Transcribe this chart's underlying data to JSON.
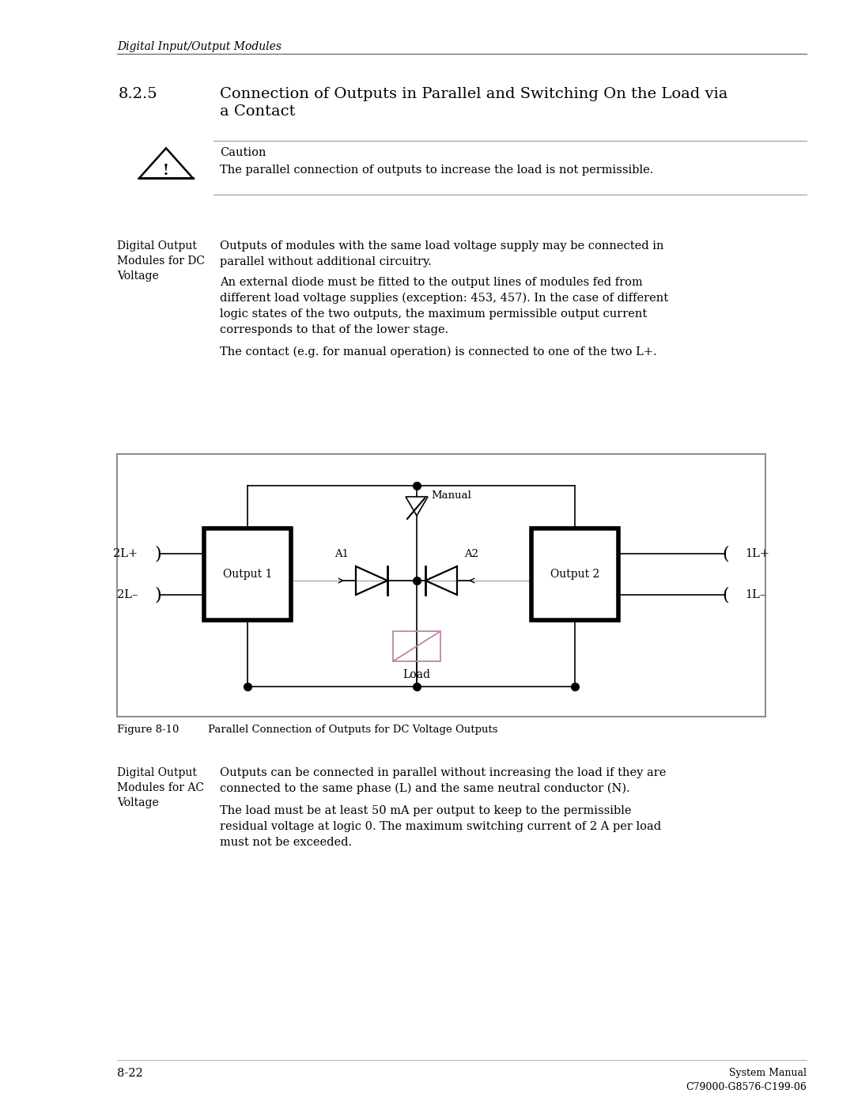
{
  "page_title": "Digital Input/Output Modules",
  "section_number": "8.2.5",
  "section_title_line1": "Connection of Outputs in Parallel and Switching On the Load via",
  "section_title_line2": "a Contact",
  "caution_label": "Caution",
  "caution_text": "The parallel connection of outputs to increase the load is not permissible.",
  "sidebar1": [
    "Digital Output",
    "Modules for DC",
    "Voltage"
  ],
  "para1_lines": [
    "Outputs of modules with the same load voltage supply may be connected in",
    "parallel without additional circuitry."
  ],
  "para2_lines": [
    "An external diode must be fitted to the output lines of modules fed from",
    "different load voltage supplies (exception: 453, 457). In the case of different",
    "logic states of the two outputs, the maximum permissible output current",
    "corresponds to that of the lower stage."
  ],
  "para3": "The contact (e.g. for manual operation) is connected to one of the two L+.",
  "figure_label": "Figure 8-10",
  "figure_caption": "Parallel Connection of Outputs for DC Voltage Outputs",
  "sidebar2": [
    "Digital Output",
    "Modules for AC",
    "Voltage"
  ],
  "para4_lines": [
    "Outputs can be connected in parallel without increasing the load if they are",
    "connected to the same phase (L) and the same neutral conductor (N)."
  ],
  "para5_lines": [
    "The load must be at least 50 mA per output to keep to the permissible",
    "residual voltage at logic 0. The maximum switching current of 2 A per load",
    "must not be exceeded."
  ],
  "page_number": "8-22",
  "footer_right_line1": "System Manual",
  "footer_right_line2": "C79000-G8576-C199-06"
}
